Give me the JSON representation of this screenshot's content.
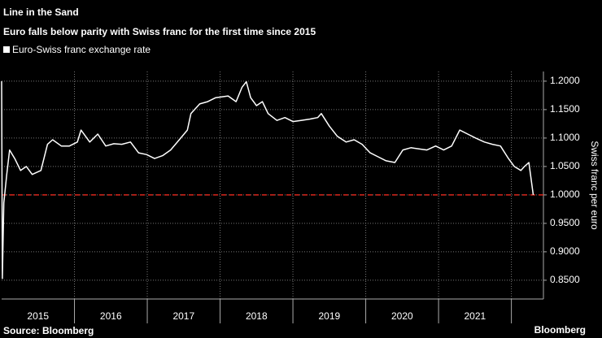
{
  "chart_data": {
    "type": "line",
    "title": "Line in the Sand",
    "subtitle": "Euro falls below parity with Swiss franc for the first time since 2015",
    "y_axis_label": "Swiss franc per euro",
    "source": "Source: Bloomberg",
    "brand": "Bloomberg",
    "x": [
      2015.0,
      2015.01,
      2015.03,
      2015.07,
      2015.11,
      2015.18,
      2015.26,
      2015.34,
      2015.42,
      2015.54,
      2015.63,
      2015.7,
      2015.82,
      2015.93,
      2016.04,
      2016.09,
      2016.21,
      2016.32,
      2016.43,
      2016.54,
      2016.65,
      2016.77,
      2016.88,
      2016.99,
      2017.1,
      2017.21,
      2017.32,
      2017.44,
      2017.55,
      2017.6,
      2017.72,
      2017.83,
      2017.94,
      2018.11,
      2018.22,
      2018.3,
      2018.36,
      2018.42,
      2018.5,
      2018.58,
      2018.66,
      2018.78,
      2018.89,
      2019.0,
      2019.11,
      2019.22,
      2019.34,
      2019.39,
      2019.5,
      2019.61,
      2019.73,
      2019.84,
      2019.95,
      2020.06,
      2020.17,
      2020.28,
      2020.4,
      2020.51,
      2020.62,
      2020.73,
      2020.84,
      2020.96,
      2021.07,
      2021.18,
      2021.29,
      2021.4,
      2021.51,
      2021.63,
      2021.74,
      2021.85,
      2021.96,
      2022.04,
      2022.13,
      2022.18,
      2022.24,
      2022.3
    ],
    "series": [
      {
        "name": "Euro-Swiss franc exchange rate",
        "color": "#ffffff",
        "values": [
          1.2,
          0.853,
          0.986,
          1.036,
          1.079,
          1.064,
          1.043,
          1.05,
          1.036,
          1.043,
          1.089,
          1.097,
          1.086,
          1.086,
          1.093,
          1.114,
          1.093,
          1.107,
          1.086,
          1.09,
          1.089,
          1.093,
          1.074,
          1.071,
          1.064,
          1.069,
          1.079,
          1.097,
          1.114,
          1.143,
          1.16,
          1.164,
          1.171,
          1.174,
          1.164,
          1.189,
          1.199,
          1.171,
          1.157,
          1.164,
          1.143,
          1.131,
          1.136,
          1.129,
          1.131,
          1.133,
          1.136,
          1.143,
          1.121,
          1.103,
          1.093,
          1.097,
          1.089,
          1.074,
          1.067,
          1.06,
          1.057,
          1.079,
          1.083,
          1.081,
          1.079,
          1.086,
          1.079,
          1.086,
          1.114,
          1.107,
          1.1,
          1.093,
          1.089,
          1.086,
          1.064,
          1.05,
          1.043,
          1.05,
          1.057,
          1.0
        ]
      }
    ],
    "reference_line": {
      "value": 1.0,
      "color": "#d9261c"
    },
    "xlim": [
      2015,
      2022.44
    ],
    "xticks": [
      2016,
      2017,
      2018,
      2019,
      2020,
      2021,
      2022
    ],
    "x_labels": [
      "2015",
      "2016",
      "2017",
      "2018",
      "2019",
      "2020",
      "2021"
    ],
    "ylim": [
      0.817,
      1.217
    ],
    "yticks": [
      {
        "value": 0.85,
        "label": "0.8500"
      },
      {
        "value": 0.9,
        "label": "0.9000"
      },
      {
        "value": 0.95,
        "label": "0.9500"
      },
      {
        "value": 1.0,
        "label": "1.0000"
      },
      {
        "value": 1.05,
        "label": "1.0500"
      },
      {
        "value": 1.1,
        "label": "1.1000"
      },
      {
        "value": 1.15,
        "label": "1.1500"
      },
      {
        "value": 1.2,
        "label": "1.2000"
      }
    ],
    "grid": true
  }
}
